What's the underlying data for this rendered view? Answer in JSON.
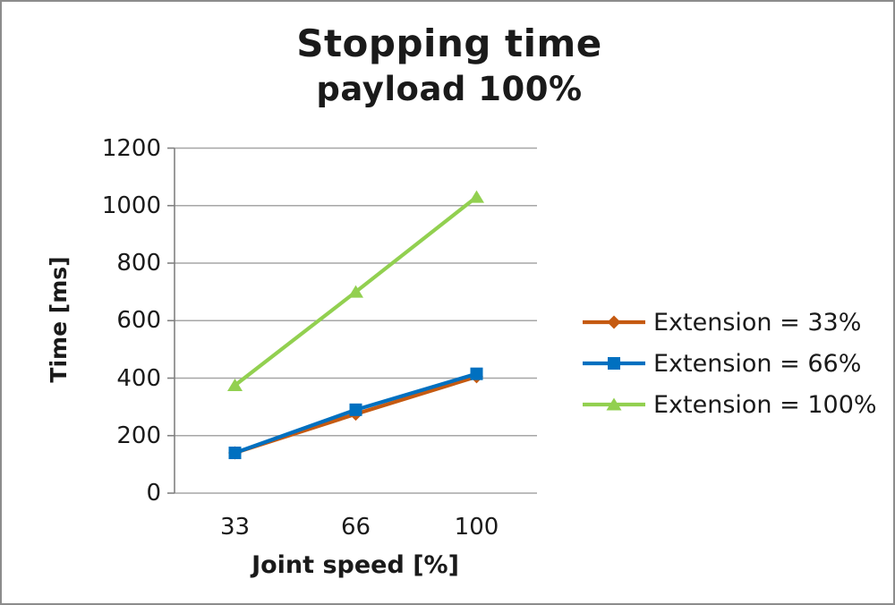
{
  "chart_data": {
    "type": "line",
    "title": "Stopping time",
    "subtitle": "payload 100%",
    "xlabel": "Joint speed [%]",
    "ylabel": "Time [ms]",
    "categories": [
      "33",
      "66",
      "100"
    ],
    "x_values": [
      33,
      66,
      100
    ],
    "ylim": [
      0,
      1200
    ],
    "ytick_interval": 200,
    "yticks": [
      0,
      200,
      400,
      600,
      800,
      1000,
      1200
    ],
    "grid": true,
    "gridline_color": "#A6A6A6",
    "axis_color": "#808080",
    "text_color": "#1A1A1A",
    "legend_position": "right",
    "series": [
      {
        "name": "Extension = 33%",
        "marker": "diamond",
        "color": "#C55A11",
        "values": [
          140,
          275,
          405
        ]
      },
      {
        "name": "Extension = 66%",
        "marker": "square",
        "color": "#0070C0",
        "values": [
          140,
          290,
          415
        ]
      },
      {
        "name": "Extension = 100%",
        "marker": "triangle",
        "color": "#92D050",
        "values": [
          375,
          700,
          1030
        ]
      }
    ]
  },
  "frame": {
    "border_color": "#8C8C8C",
    "background": "#FFFFFF"
  }
}
